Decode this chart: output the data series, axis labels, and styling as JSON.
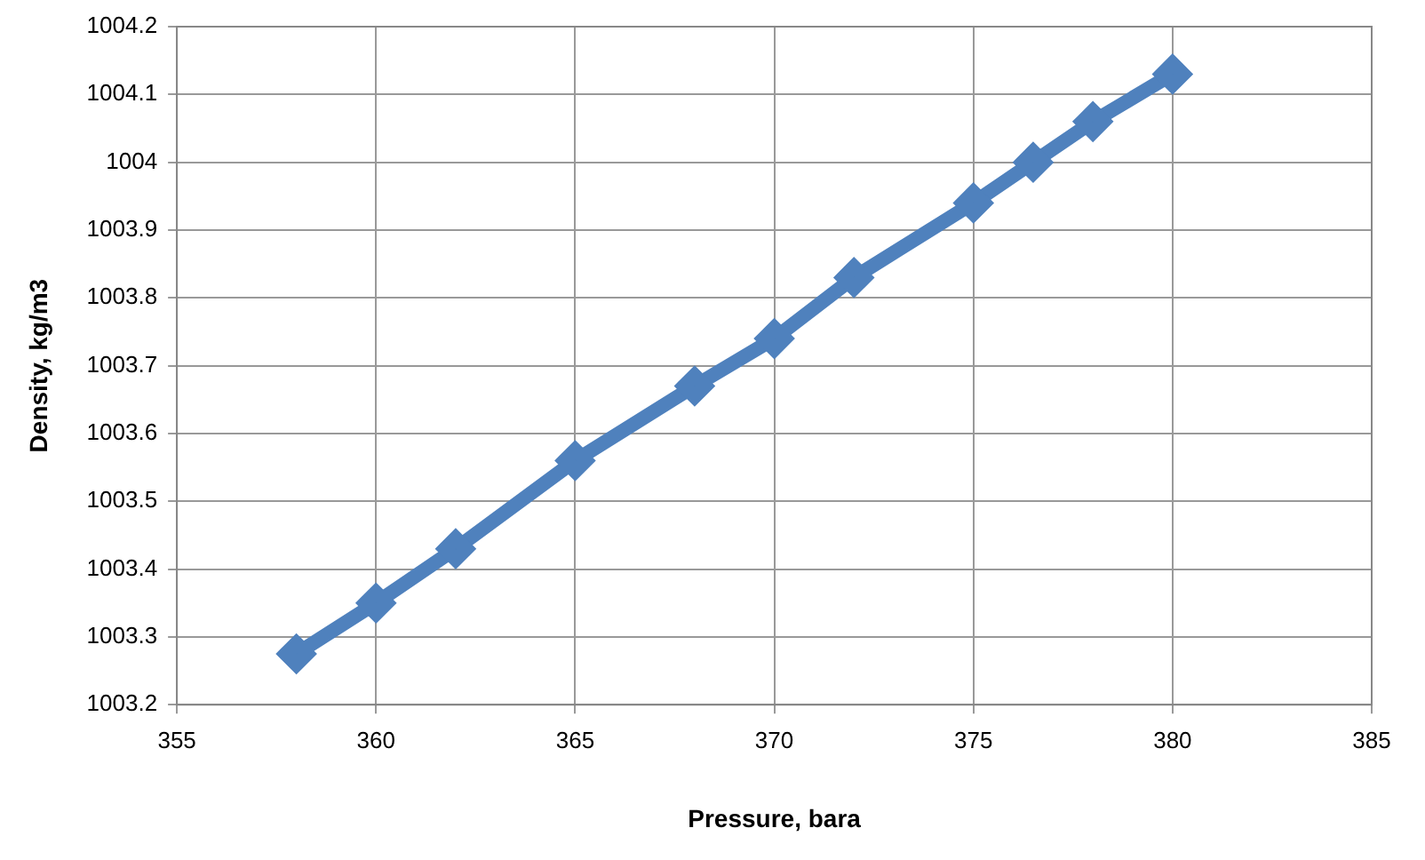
{
  "chart_data": {
    "type": "line",
    "xlabel": "Pressure, bara",
    "ylabel": "Density, kg/m3",
    "x": [
      358,
      360,
      362,
      365,
      368,
      370,
      372,
      375,
      376.5,
      378,
      380
    ],
    "series": [
      {
        "color": "#4f81bd",
        "values": [
          1003.275,
          1003.35,
          1003.43,
          1003.56,
          1003.67,
          1003.74,
          1003.83,
          1003.94,
          1004.0,
          1004.06,
          1004.13
        ]
      }
    ],
    "xlim": [
      355,
      385
    ],
    "xticks": [
      355,
      360,
      365,
      370,
      375,
      380,
      385
    ],
    "ylim": [
      1003.2,
      1004.2
    ],
    "yticks": [
      1003.2,
      1003.3,
      1003.4,
      1003.5,
      1003.6,
      1003.7,
      1003.8,
      1003.9,
      1004,
      1004.1,
      1004.2
    ],
    "grid": true,
    "legend": false,
    "marker": "diamond",
    "line_style": "solid"
  }
}
